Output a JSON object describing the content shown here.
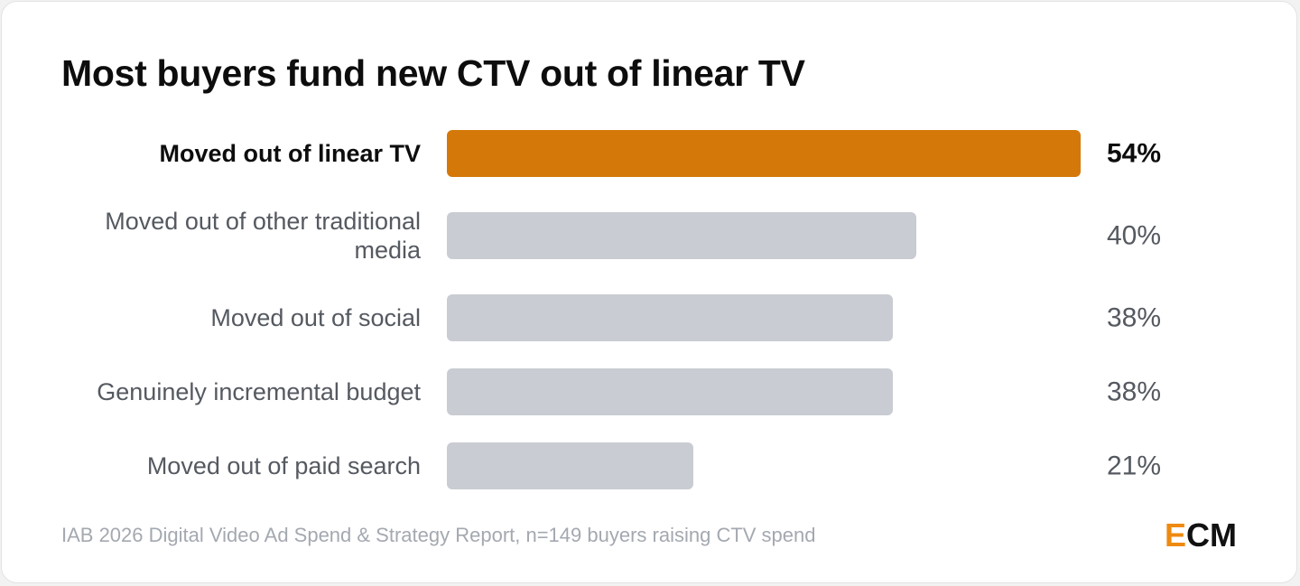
{
  "colors": {
    "highlight_bar": "#d4780a",
    "default_bar": "#c9ccd2",
    "highlight_text": "#0d0d0d",
    "default_text": "#555960",
    "logo_accent": "#ee8a10"
  },
  "chart_data": {
    "type": "bar",
    "orientation": "horizontal",
    "title": "Most buyers fund new CTV out of linear TV",
    "categories": [
      [
        "Moved out of linear TV"
      ],
      [
        "Moved out of other traditional",
        "media"
      ],
      [
        "Moved out of social"
      ],
      [
        "Genuinely incremental budget"
      ],
      [
        "Moved out of paid search"
      ]
    ],
    "values": [
      54,
      40,
      38,
      38,
      21
    ],
    "value_labels": [
      "54%",
      "40%",
      "38%",
      "38%",
      "21%"
    ],
    "highlight_index": 0,
    "xlim": [
      0,
      54
    ],
    "grid": false,
    "legend": "none"
  },
  "footer": {
    "source": "IAB 2026 Digital Video Ad Spend & Strategy Report, n=149 buyers raising CTV spend",
    "logo_e": "E",
    "logo_rest": "CM"
  }
}
